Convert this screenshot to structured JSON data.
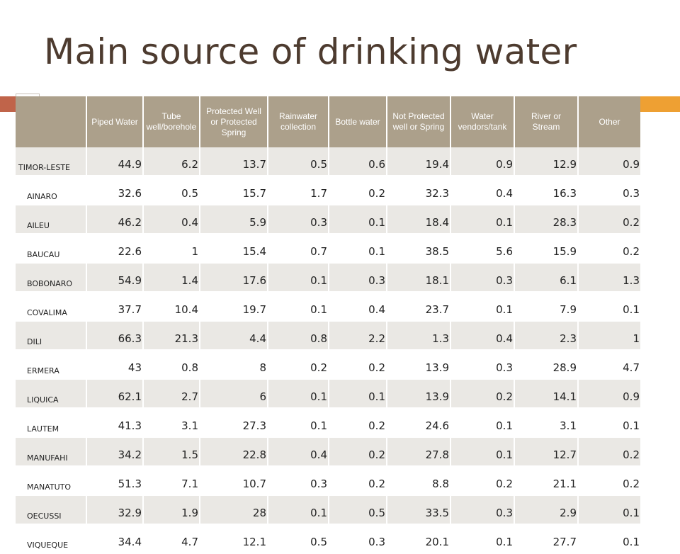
{
  "title": "Main source of drinking water",
  "table": {
    "headers": [
      "",
      "Piped Water",
      "Tube well/borehole",
      "Protected Well or Protected Spring",
      "Rainwater collection",
      "Bottle water",
      "Not Protected well or Spring",
      "Water vendors/tank",
      "River or Stream",
      "Other"
    ],
    "rows": [
      {
        "label": "TIMOR-LESTE",
        "values": [
          "44.9",
          "6.2",
          "13.7",
          "0.5",
          "0.6",
          "19.4",
          "0.9",
          "12.9",
          "0.9"
        ]
      },
      {
        "label": "AINARO",
        "values": [
          "32.6",
          "0.5",
          "15.7",
          "1.7",
          "0.2",
          "32.3",
          "0.4",
          "16.3",
          "0.3"
        ]
      },
      {
        "label": "AILEU",
        "values": [
          "46.2",
          "0.4",
          "5.9",
          "0.3",
          "0.1",
          "18.4",
          "0.1",
          "28.3",
          "0.2"
        ]
      },
      {
        "label": "BAUCAU",
        "values": [
          "22.6",
          "1",
          "15.4",
          "0.7",
          "0.1",
          "38.5",
          "5.6",
          "15.9",
          "0.2"
        ]
      },
      {
        "label": "BOBONARO",
        "values": [
          "54.9",
          "1.4",
          "17.6",
          "0.1",
          "0.3",
          "18.1",
          "0.3",
          "6.1",
          "1.3"
        ]
      },
      {
        "label": "COVALIMA",
        "values": [
          "37.7",
          "10.4",
          "19.7",
          "0.1",
          "0.4",
          "23.7",
          "0.1",
          "7.9",
          "0.1"
        ]
      },
      {
        "label": "DILI",
        "values": [
          "66.3",
          "21.3",
          "4.4",
          "0.8",
          "2.2",
          "1.3",
          "0.4",
          "2.3",
          "1"
        ]
      },
      {
        "label": "ERMERA",
        "values": [
          "43",
          "0.8",
          "8",
          "0.2",
          "0.2",
          "13.9",
          "0.3",
          "28.9",
          "4.7"
        ]
      },
      {
        "label": "LIQUICA",
        "values": [
          "62.1",
          "2.7",
          "6",
          "0.1",
          "0.1",
          "13.9",
          "0.2",
          "14.1",
          "0.9"
        ]
      },
      {
        "label": "LAUTEM",
        "values": [
          "41.3",
          "3.1",
          "27.3",
          "0.1",
          "0.2",
          "24.6",
          "0.1",
          "3.1",
          "0.1"
        ]
      },
      {
        "label": "MANUFAHI",
        "values": [
          "34.2",
          "1.5",
          "22.8",
          "0.4",
          "0.2",
          "27.8",
          "0.1",
          "12.7",
          "0.2"
        ]
      },
      {
        "label": "MANATUTO",
        "values": [
          "51.3",
          "7.1",
          "10.7",
          "0.3",
          "0.2",
          "8.8",
          "0.2",
          "21.1",
          "0.2"
        ]
      },
      {
        "label": "OECUSSI",
        "values": [
          "32.9",
          "1.9",
          "28",
          "0.1",
          "0.5",
          "33.5",
          "0.3",
          "2.9",
          "0.1"
        ]
      },
      {
        "label": "VIQUEQUE",
        "values": [
          "34.4",
          "4.7",
          "12.1",
          "0.5",
          "0.3",
          "20.1",
          "0.1",
          "27.7",
          "0.1"
        ]
      }
    ]
  },
  "colors": {
    "title": "#4d3b2f",
    "header_bg": "#aca08b",
    "accent_orange": "#eea033",
    "accent_rust": "#c0644a",
    "row_band": "#eae8e4"
  }
}
